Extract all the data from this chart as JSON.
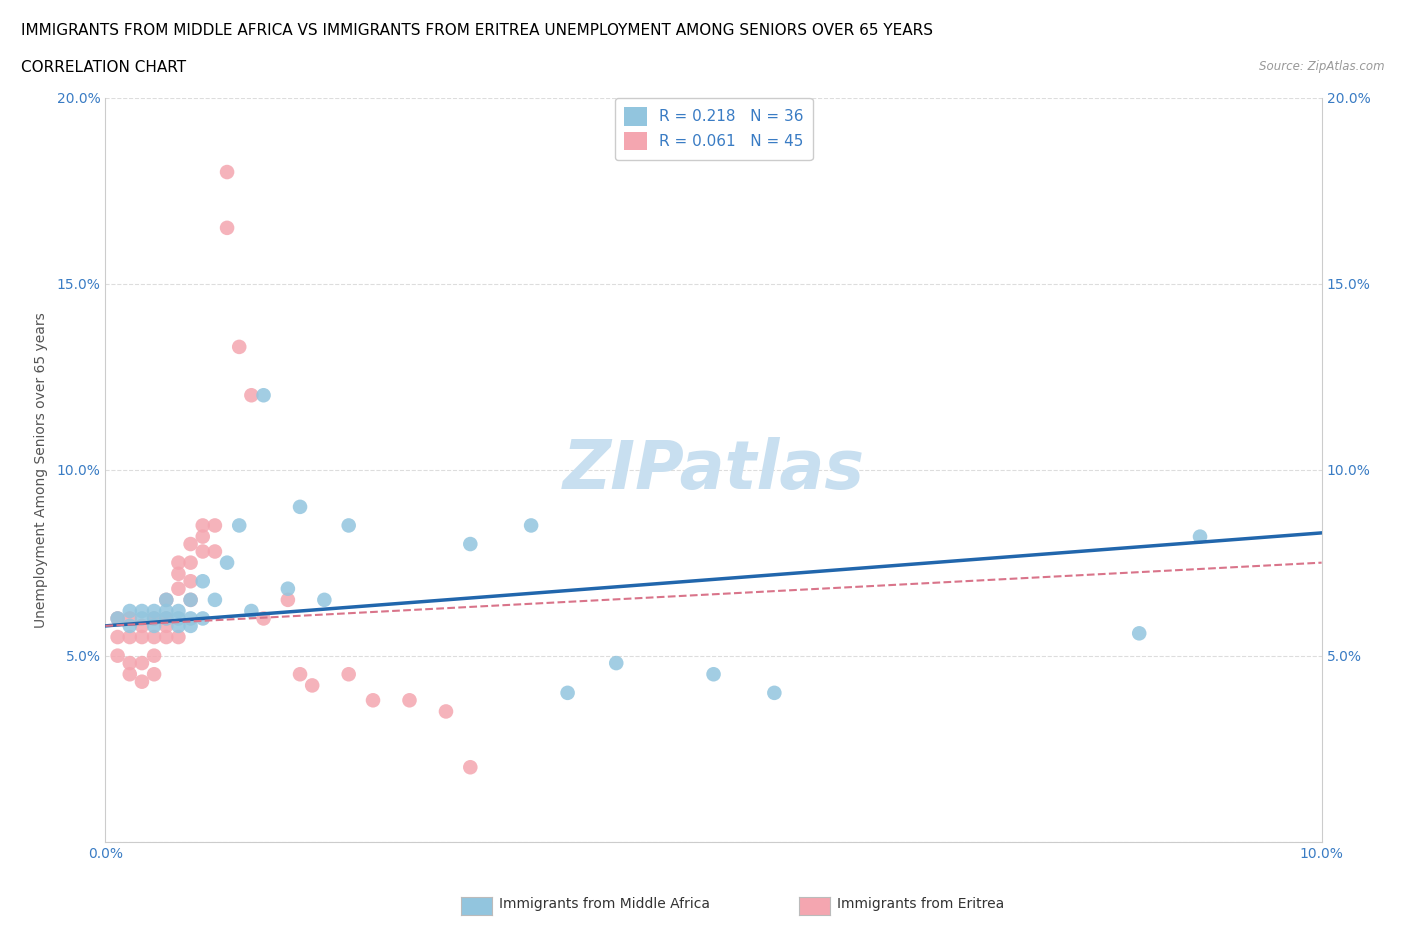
{
  "title_line1": "IMMIGRANTS FROM MIDDLE AFRICA VS IMMIGRANTS FROM ERITREA UNEMPLOYMENT AMONG SENIORS OVER 65 YEARS",
  "title_line2": "CORRELATION CHART",
  "source": "Source: ZipAtlas.com",
  "ylabel": "Unemployment Among Seniors over 65 years",
  "xlim": [
    0.0,
    0.1
  ],
  "ylim": [
    0.0,
    0.2
  ],
  "legend_label1": "Immigrants from Middle Africa",
  "legend_label2": "Immigrants from Eritrea",
  "R1": 0.218,
  "N1": 36,
  "R2": 0.061,
  "N2": 45,
  "color1": "#92c5de",
  "color2": "#f4a6b0",
  "line_color1": "#2166ac",
  "line_color2": "#d9748a",
  "title_fontsize": 11,
  "axis_label_fontsize": 10,
  "tick_fontsize": 10,
  "background_color": "#ffffff",
  "watermark": "ZIPatlas",
  "watermark_color": "#c8dff0",
  "blue_color": "#3a7cc4",
  "scatter1_x": [
    0.001,
    0.002,
    0.002,
    0.003,
    0.003,
    0.004,
    0.004,
    0.004,
    0.005,
    0.005,
    0.005,
    0.006,
    0.006,
    0.006,
    0.007,
    0.007,
    0.007,
    0.008,
    0.008,
    0.009,
    0.01,
    0.011,
    0.012,
    0.013,
    0.015,
    0.016,
    0.018,
    0.02,
    0.03,
    0.035,
    0.038,
    0.042,
    0.05,
    0.055,
    0.085,
    0.09
  ],
  "scatter1_y": [
    0.06,
    0.062,
    0.058,
    0.06,
    0.062,
    0.06,
    0.058,
    0.062,
    0.06,
    0.062,
    0.065,
    0.06,
    0.058,
    0.062,
    0.06,
    0.058,
    0.065,
    0.06,
    0.07,
    0.065,
    0.075,
    0.085,
    0.062,
    0.12,
    0.068,
    0.09,
    0.065,
    0.085,
    0.08,
    0.085,
    0.04,
    0.048,
    0.045,
    0.04,
    0.056,
    0.082
  ],
  "scatter2_x": [
    0.001,
    0.001,
    0.001,
    0.002,
    0.002,
    0.002,
    0.002,
    0.003,
    0.003,
    0.003,
    0.003,
    0.004,
    0.004,
    0.004,
    0.004,
    0.005,
    0.005,
    0.005,
    0.005,
    0.006,
    0.006,
    0.006,
    0.006,
    0.007,
    0.007,
    0.007,
    0.007,
    0.008,
    0.008,
    0.008,
    0.009,
    0.009,
    0.01,
    0.01,
    0.011,
    0.012,
    0.013,
    0.015,
    0.016,
    0.017,
    0.02,
    0.022,
    0.025,
    0.028,
    0.03
  ],
  "scatter2_y": [
    0.06,
    0.055,
    0.05,
    0.06,
    0.055,
    0.048,
    0.045,
    0.058,
    0.055,
    0.048,
    0.043,
    0.06,
    0.055,
    0.05,
    0.045,
    0.065,
    0.06,
    0.058,
    0.055,
    0.075,
    0.072,
    0.068,
    0.055,
    0.08,
    0.075,
    0.07,
    0.065,
    0.085,
    0.082,
    0.078,
    0.085,
    0.078,
    0.165,
    0.18,
    0.133,
    0.12,
    0.06,
    0.065,
    0.045,
    0.042,
    0.045,
    0.038,
    0.038,
    0.035,
    0.02
  ]
}
